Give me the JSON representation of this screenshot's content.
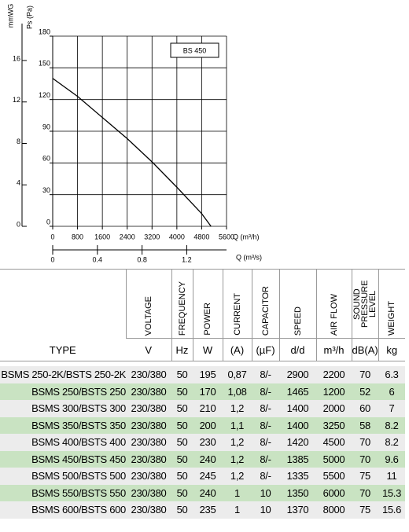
{
  "chart_data": {
    "type": "line",
    "xlabel": "Q (m³/h)",
    "ylabel": "Ps (Pa)",
    "y2label": "mmWG",
    "x2label": "Q (m³/s)",
    "x": [
      0,
      800,
      1600,
      2400,
      3200,
      4000,
      4800,
      5100
    ],
    "series": [
      {
        "name": "BS 450",
        "color": "#000000",
        "values": [
          140,
          123,
          103,
          83,
          61,
          37,
          12,
          0
        ]
      }
    ],
    "xlim": [
      0,
      5600
    ],
    "xticks": [
      0,
      800,
      1600,
      2400,
      3200,
      4000,
      4800,
      5600
    ],
    "ylim": [
      0,
      180
    ],
    "yticks": [
      0,
      30,
      60,
      90,
      120,
      150,
      180
    ],
    "y2lim": [
      0,
      18.35
    ],
    "y2ticks": [
      0,
      4,
      8,
      12,
      16
    ],
    "x2lim": [
      0,
      1.556
    ],
    "x2ticks": [
      0,
      0.4,
      0.8,
      1.2
    ],
    "grid": true
  },
  "table": {
    "headers": [
      "TYPE",
      "VOLTAGE",
      "FREQUENCY",
      "POWER",
      "CURRENT",
      "CAPACITOR",
      "SPEED",
      "AIR FLOW",
      "SOUND PRESSURE LEVEL",
      "WEIGHT"
    ],
    "units": [
      "V",
      "Hz",
      "W",
      "(A)",
      "(µF)",
      "d/d",
      "m³/h",
      "dB(A)",
      "kg"
    ],
    "rows": [
      [
        "BSMS 250-2K/BSTS 250-2K",
        "230/380",
        "50",
        "195",
        "0,87",
        "8/-",
        "2900",
        "2200",
        "70",
        "6.3"
      ],
      [
        "BSMS 250/BSTS 250",
        "230/380",
        "50",
        "170",
        "1,08",
        "8/-",
        "1465",
        "1200",
        "52",
        "6"
      ],
      [
        "BSMS 300/BSTS 300",
        "230/380",
        "50",
        "210",
        "1,2",
        "8/-",
        "1400",
        "2000",
        "60",
        "7"
      ],
      [
        "BSMS 350/BSTS 350",
        "230/380",
        "50",
        "200",
        "1,1",
        "8/-",
        "1400",
        "3250",
        "58",
        "8.2"
      ],
      [
        "BSMS 400/BSTS 400",
        "230/380",
        "50",
        "230",
        "1,2",
        "8/-",
        "1420",
        "4500",
        "70",
        "8.2"
      ],
      [
        "BSMS 450/BSTS 450",
        "230/380",
        "50",
        "240",
        "1,2",
        "8/-",
        "1385",
        "5000",
        "70",
        "9.6"
      ],
      [
        "BSMS 500/BSTS 500",
        "230/380",
        "50",
        "245",
        "1,2",
        "8/-",
        "1335",
        "5500",
        "75",
        "11"
      ],
      [
        "BSMS 550/BSTS 550",
        "230/380",
        "50",
        "240",
        "1",
        "10",
        "1350",
        "6000",
        "70",
        "15.3"
      ],
      [
        "BSMS 600/BSTS 600",
        "230/380",
        "50",
        "235",
        "1",
        "10",
        "1370",
        "8000",
        "75",
        "15.6"
      ]
    ]
  }
}
